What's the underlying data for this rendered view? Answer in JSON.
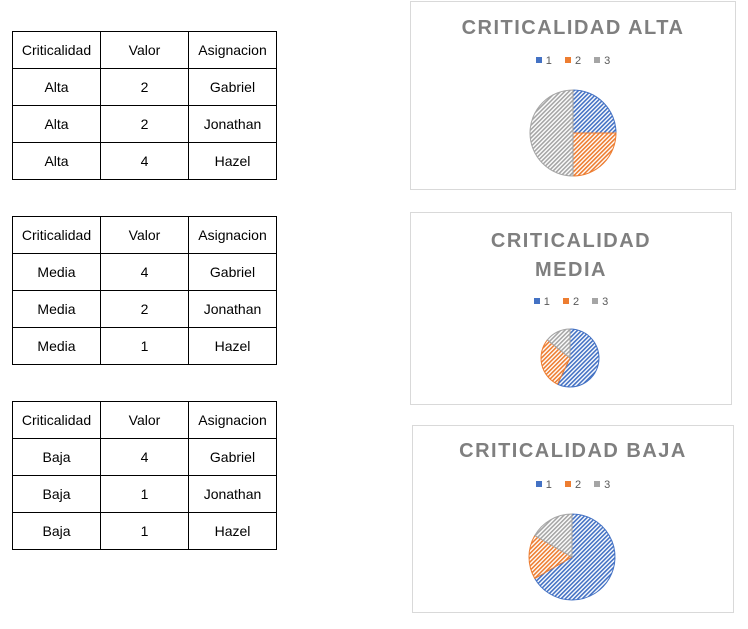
{
  "tables": [
    {
      "headers": [
        "Criticalidad",
        "Valor",
        "Asignacion"
      ],
      "rows": [
        [
          "Alta",
          "2",
          "Gabriel"
        ],
        [
          "Alta",
          "2",
          "Jonathan"
        ],
        [
          "Alta",
          "4",
          "Hazel"
        ]
      ]
    },
    {
      "headers": [
        "Criticalidad",
        "Valor",
        "Asignacion"
      ],
      "rows": [
        [
          "Media",
          "4",
          "Gabriel"
        ],
        [
          "Media",
          "2",
          "Jonathan"
        ],
        [
          "Media",
          "1",
          "Hazel"
        ]
      ]
    },
    {
      "headers": [
        "Criticalidad",
        "Valor",
        "Asignacion"
      ],
      "rows": [
        [
          "Baja",
          "4",
          "Gabriel"
        ],
        [
          "Baja",
          "1",
          "Jonathan"
        ],
        [
          "Baja",
          "1",
          "Hazel"
        ]
      ]
    }
  ],
  "chart_data": [
    {
      "type": "pie",
      "title_lines": [
        "CRITICALIDAD ALTA"
      ],
      "categories": [
        "1",
        "2",
        "3"
      ],
      "values": [
        2,
        2,
        4
      ],
      "colors": [
        "#4472c4",
        "#ed7d31",
        "#a5a5a5"
      ],
      "pattern": "diagonal-hatch",
      "legend_position": "top"
    },
    {
      "type": "pie",
      "title_lines": [
        "CRITICALIDAD",
        "MEDIA"
      ],
      "categories": [
        "1",
        "2",
        "3"
      ],
      "values": [
        4,
        2,
        1
      ],
      "colors": [
        "#4472c4",
        "#ed7d31",
        "#a5a5a5"
      ],
      "pattern": "diagonal-hatch",
      "legend_position": "top"
    },
    {
      "type": "pie",
      "title_lines": [
        "CRITICALIDAD BAJA"
      ],
      "categories": [
        "1",
        "2",
        "3"
      ],
      "values": [
        4,
        1,
        1
      ],
      "colors": [
        "#4472c4",
        "#ed7d31",
        "#a5a5a5"
      ],
      "pattern": "diagonal-hatch",
      "legend_position": "top"
    }
  ]
}
